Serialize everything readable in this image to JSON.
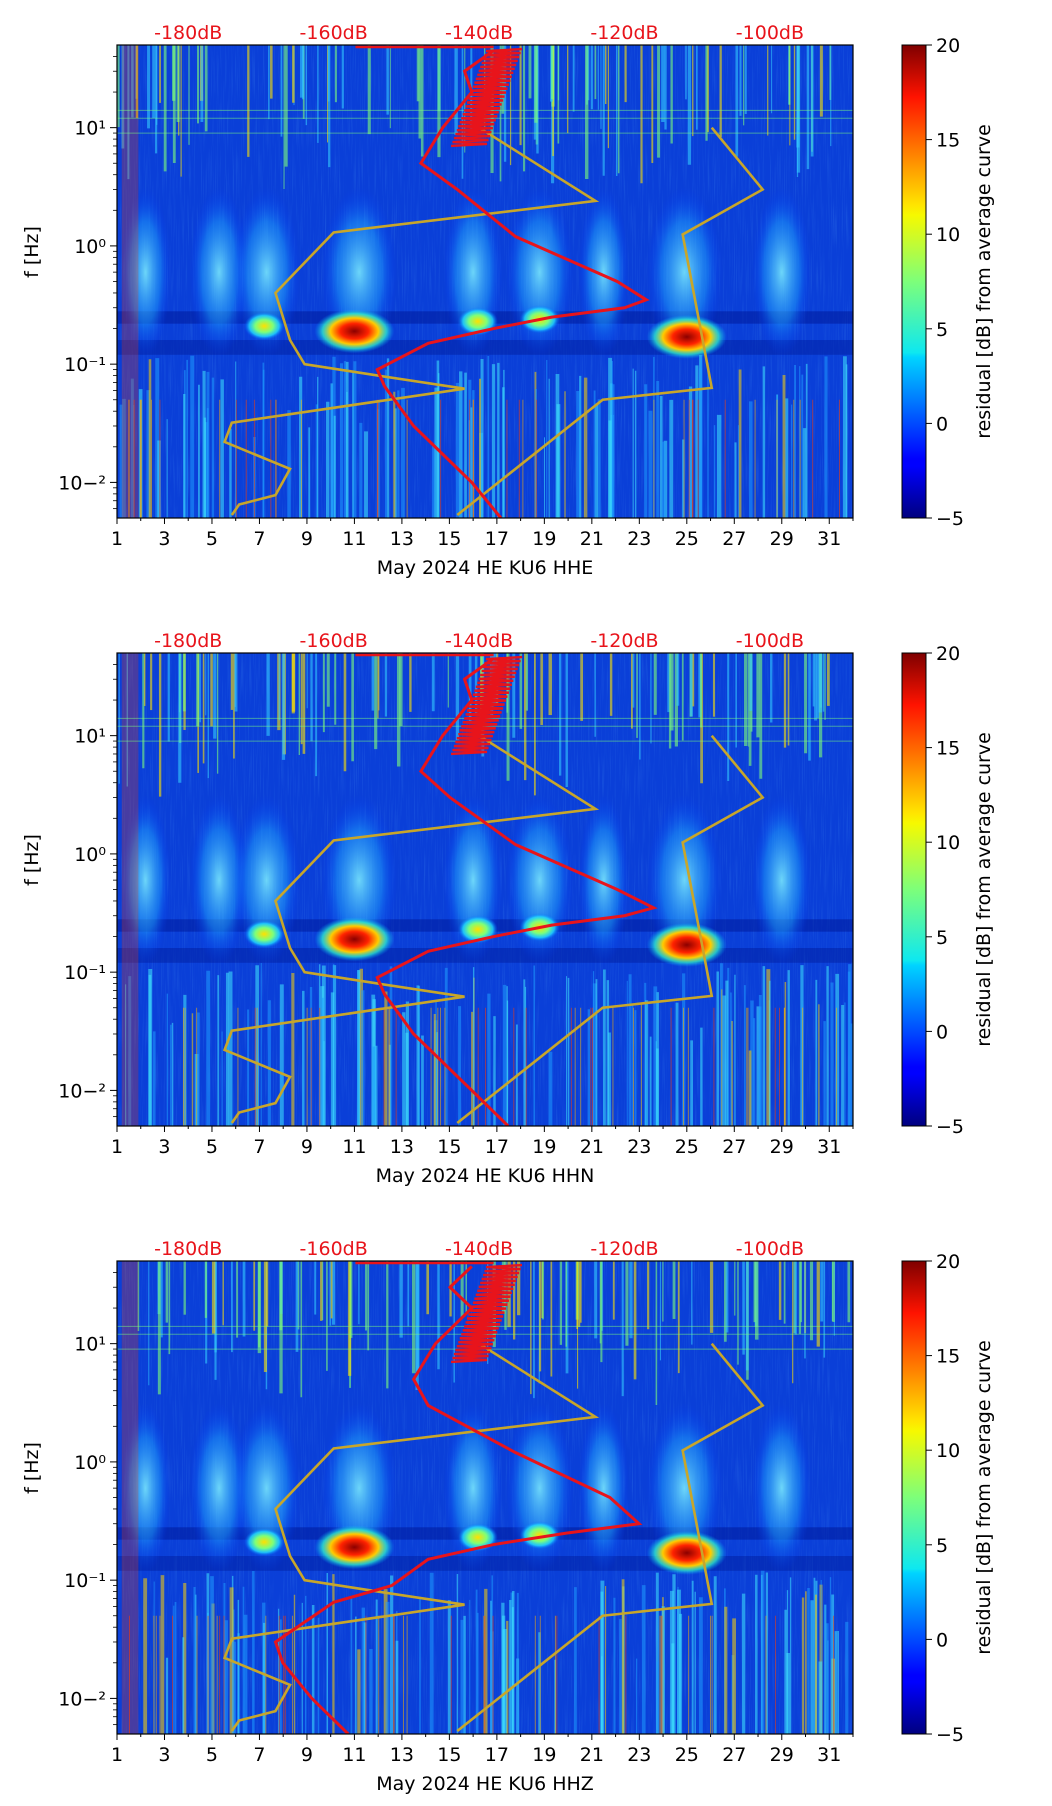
{
  "figure": {
    "y_label": "f [Hz]",
    "colorbar_label": "residual [dB] from average curve",
    "colorbar_ticks": [
      "20",
      "15",
      "10",
      "5",
      "0",
      "−5"
    ],
    "colorbar_values": [
      20,
      15,
      10,
      5,
      0,
      -5
    ],
    "colorbar_range": [
      -5,
      20
    ],
    "db_labels": [
      "-180dB",
      "-160dB",
      "-140dB",
      "-120dB",
      "-100dB"
    ],
    "x_ticks": [
      "1",
      "3",
      "5",
      "7",
      "9",
      "11",
      "13",
      "15",
      "17",
      "19",
      "21",
      "23",
      "25",
      "27",
      "29",
      "31"
    ],
    "y_ticks": [
      "10−²",
      "10⁻¹",
      "10⁰",
      "10¹"
    ],
    "colors": {
      "noise_model": "#c8a62a",
      "psd_curve": "#e8141b",
      "db_label": "#e8141b",
      "axis": "#000000"
    }
  },
  "chart_data": [
    {
      "type": "heatmap",
      "xlabel": "May 2024 HE KU6  HHE",
      "ylabel": "f [Hz]",
      "xlim": [
        1,
        32
      ],
      "ylim": [
        0.005,
        50
      ],
      "yscale": "log",
      "bright_events": [
        {
          "day": 11,
          "freq": 0.19,
          "residual_db": 20
        },
        {
          "day": 25,
          "freq": 0.17,
          "residual_db": 20
        },
        {
          "day": 16.2,
          "freq": 0.23,
          "residual_db": 10
        },
        {
          "day": 18.8,
          "freq": 0.24,
          "residual_db": 8
        },
        {
          "day": 7.2,
          "freq": 0.21,
          "residual_db": 6
        }
      ],
      "series": [
        {
          "name": "noise model (yellow)",
          "db": [
            -174,
            -173,
            -168,
            -166,
            -175,
            -174,
            -142,
            -155,
            -164,
            -166,
            -168,
            -160,
            -124,
            -140,
            -143,
            -123,
            -108,
            -112,
            -101,
            -108
          ],
          "freq": [
            0.0053,
            0.0065,
            0.0078,
            0.013,
            0.022,
            0.032,
            0.062,
            0.082,
            0.1,
            0.16,
            0.4,
            1.3,
            2.4,
            10,
            0.0053,
            0.05,
            0.063,
            1.25,
            3,
            10
          ]
        },
        {
          "name": "average PSD (red)",
          "db": [
            -137,
            -141,
            -149,
            -153,
            -154,
            -147,
            -138,
            -130,
            -120,
            -117,
            -121,
            -135,
            -143,
            -148,
            -145,
            -141,
            -142,
            -138
          ],
          "freq": [
            0.005,
            0.01,
            0.03,
            0.065,
            0.09,
            0.15,
            0.2,
            0.25,
            0.3,
            0.35,
            0.5,
            1.2,
            3,
            5,
            10,
            20,
            30,
            45
          ]
        }
      ]
    },
    {
      "type": "heatmap",
      "xlabel": "May 2024 HE KU6  HHN",
      "ylabel": "f [Hz]",
      "xlim": [
        1,
        32
      ],
      "ylim": [
        0.005,
        50
      ],
      "yscale": "log",
      "bright_events": [
        {
          "day": 11,
          "freq": 0.19,
          "residual_db": 20
        },
        {
          "day": 25,
          "freq": 0.17,
          "residual_db": 20
        },
        {
          "day": 16.2,
          "freq": 0.23,
          "residual_db": 10
        },
        {
          "day": 18.8,
          "freq": 0.24,
          "residual_db": 8
        },
        {
          "day": 7.2,
          "freq": 0.21,
          "residual_db": 6
        }
      ],
      "series": [
        {
          "name": "noise model (yellow)",
          "db": [
            -174,
            -173,
            -168,
            -166,
            -175,
            -174,
            -142,
            -155,
            -164,
            -166,
            -168,
            -160,
            -124,
            -140,
            -143,
            -123,
            -108,
            -112,
            -101,
            -108
          ],
          "freq": [
            0.0053,
            0.0065,
            0.0078,
            0.013,
            0.022,
            0.032,
            0.062,
            0.082,
            0.1,
            0.16,
            0.4,
            1.3,
            2.4,
            10,
            0.0053,
            0.05,
            0.063,
            1.25,
            3,
            10
          ]
        },
        {
          "name": "average PSD (red)",
          "db": [
            -136,
            -141,
            -149,
            -153,
            -154,
            -147,
            -138,
            -130,
            -120,
            -116,
            -121,
            -135,
            -144,
            -148,
            -145,
            -141,
            -142,
            -138
          ],
          "freq": [
            0.005,
            0.01,
            0.03,
            0.065,
            0.09,
            0.15,
            0.2,
            0.25,
            0.3,
            0.35,
            0.5,
            1.2,
            3,
            5,
            10,
            20,
            30,
            45
          ]
        }
      ]
    },
    {
      "type": "heatmap",
      "xlabel": "May 2024 HE KU6  HHZ",
      "ylabel": "f [Hz]",
      "xlim": [
        1,
        32
      ],
      "ylim": [
        0.005,
        50
      ],
      "yscale": "log",
      "bright_events": [
        {
          "day": 11,
          "freq": 0.19,
          "residual_db": 20
        },
        {
          "day": 25,
          "freq": 0.17,
          "residual_db": 20
        },
        {
          "day": 16.2,
          "freq": 0.23,
          "residual_db": 10
        },
        {
          "day": 18.8,
          "freq": 0.24,
          "residual_db": 8
        },
        {
          "day": 7.2,
          "freq": 0.21,
          "residual_db": 6
        }
      ],
      "series": [
        {
          "name": "noise model (yellow)",
          "db": [
            -174,
            -173,
            -168,
            -166,
            -175,
            -174,
            -142,
            -155,
            -164,
            -166,
            -168,
            -160,
            -124,
            -140,
            -143,
            -123,
            -108,
            -112,
            -101,
            -108
          ],
          "freq": [
            0.0053,
            0.0065,
            0.0078,
            0.013,
            0.022,
            0.032,
            0.062,
            0.082,
            0.1,
            0.16,
            0.4,
            1.3,
            2.4,
            10,
            0.0053,
            0.05,
            0.063,
            1.25,
            3,
            10
          ]
        },
        {
          "name": "average PSD (red)",
          "db": [
            -158,
            -163,
            -167,
            -168,
            -160,
            -152,
            -147,
            -138,
            -128,
            -118,
            -122,
            -135,
            -147,
            -149,
            -146,
            -141,
            -144,
            -141
          ],
          "freq": [
            0.005,
            0.01,
            0.02,
            0.03,
            0.065,
            0.09,
            0.15,
            0.2,
            0.25,
            0.3,
            0.5,
            1.2,
            3,
            5,
            10,
            20,
            30,
            45
          ]
        }
      ]
    }
  ]
}
